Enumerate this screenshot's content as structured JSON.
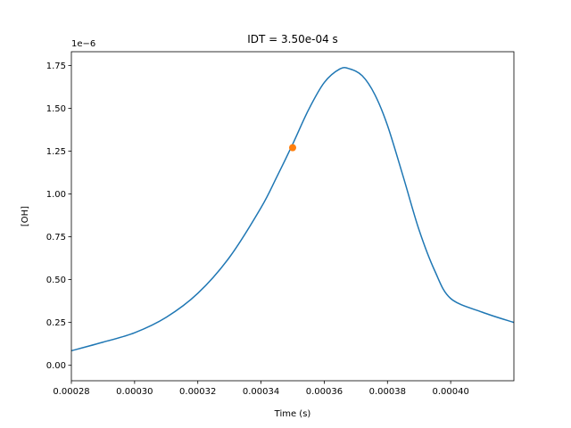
{
  "chart_data": {
    "type": "line",
    "title": "IDT = 3.50e-04 s",
    "xlabel": "Time (s)",
    "ylabel": "[OH]",
    "y_offset_text": "1e−6",
    "xlim": [
      0.00028,
      0.00042
    ],
    "ylim": [
      -9e-08,
      1.83e-06
    ],
    "x_ticks": [
      0.00028,
      0.0003,
      0.00032,
      0.00034,
      0.00036,
      0.00038,
      0.0004
    ],
    "x_tick_labels": [
      "0.00028",
      "0.00030",
      "0.00032",
      "0.00034",
      "0.00036",
      "0.00038",
      "0.00040"
    ],
    "y_ticks": [
      0,
      2.5e-07,
      5e-07,
      7.5e-07,
      1e-06,
      1.25e-06,
      1.5e-06,
      1.75e-06
    ],
    "y_tick_labels": [
      "0.00",
      "0.25",
      "0.50",
      "0.75",
      "1.00",
      "1.25",
      "1.50",
      "1.75"
    ],
    "grid": false,
    "series": [
      {
        "color": "#1f77b4",
        "x": [
          0.00028,
          0.00029,
          0.0003,
          0.00031,
          0.00032,
          0.00033,
          0.00034,
          0.000345,
          0.00035,
          0.000355,
          0.00036,
          0.000365,
          0.000368,
          0.000372,
          0.000376,
          0.00038,
          0.000385,
          0.00039,
          0.000395,
          0.0004,
          0.00041,
          0.00042
        ],
        "y": [
          8.5e-08,
          1.35e-07,
          1.9e-07,
          2.8e-07,
          4.2e-07,
          6.3e-07,
          9.2e-07,
          1.1e-06,
          1.29e-06,
          1.49e-06,
          1.65e-06,
          1.73e-06,
          1.73e-06,
          1.69e-06,
          1.58e-06,
          1.4e-06,
          1.1e-06,
          7.9e-07,
          5.5e-07,
          3.9e-07,
          3.1e-07,
          2.5e-07
        ]
      }
    ],
    "marker": {
      "x": 0.00035,
      "y": 1.27e-06,
      "color": "#ff7f0e"
    }
  }
}
